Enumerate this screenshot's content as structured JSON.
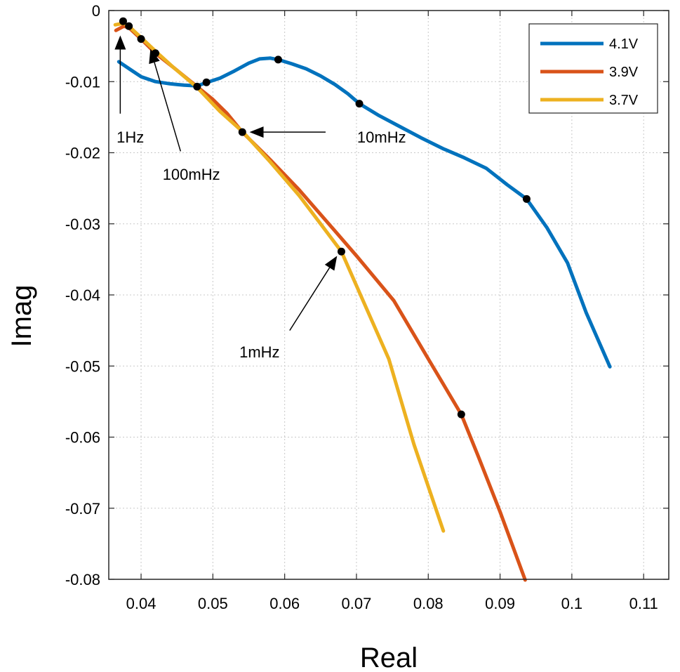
{
  "chart_data": {
    "type": "line",
    "xlabel": "Real",
    "ylabel": "Imag",
    "xlim": [
      0.0355,
      0.1135
    ],
    "ylim": [
      -0.08,
      0
    ],
    "xticks": [
      0.04,
      0.05,
      0.06,
      0.07,
      0.08,
      0.09,
      0.1,
      0.11
    ],
    "xtick_labels": [
      "0.04",
      "0.05",
      "0.06",
      "0.07",
      "0.08",
      "0.09",
      "0.1",
      "0.11"
    ],
    "yticks": [
      0,
      -0.01,
      -0.02,
      -0.03,
      -0.04,
      -0.05,
      -0.06,
      -0.07,
      -0.08
    ],
    "ytick_labels": [
      "0",
      "-0.01",
      "-0.02",
      "-0.03",
      "-0.04",
      "-0.05",
      "-0.06",
      "-0.07",
      "-0.08"
    ],
    "grid": true,
    "legend_position": "top-right",
    "series": [
      {
        "name": "4.1V",
        "color": "#0072BD",
        "x": [
          0.0369,
          0.0385,
          0.04,
          0.042,
          0.044,
          0.046,
          0.0478,
          0.0492,
          0.051,
          0.053,
          0.055,
          0.0565,
          0.058,
          0.0591,
          0.061,
          0.063,
          0.065,
          0.067,
          0.0688,
          0.0704,
          0.073,
          0.076,
          0.079,
          0.082,
          0.085,
          0.0881,
          0.091,
          0.0937,
          0.0965,
          0.0994,
          0.102,
          0.1053
        ],
        "y": [
          -0.0072,
          -0.0083,
          -0.0093,
          -0.01,
          -0.0103,
          -0.0105,
          -0.0106,
          -0.0101,
          -0.0095,
          -0.0085,
          -0.0074,
          -0.0068,
          -0.0067,
          -0.0069,
          -0.0075,
          -0.0082,
          -0.0092,
          -0.0104,
          -0.0117,
          -0.0131,
          -0.0147,
          -0.0163,
          -0.0179,
          -0.0194,
          -0.0207,
          -0.0222,
          -0.0245,
          -0.0265,
          -0.0305,
          -0.0355,
          -0.0425,
          -0.0501
        ]
      },
      {
        "name": "3.9V",
        "color": "#D95319",
        "x": [
          0.0365,
          0.0376,
          0.0383,
          0.04,
          0.042,
          0.0445,
          0.0478,
          0.05,
          0.052,
          0.0541,
          0.058,
          0.062,
          0.067,
          0.07,
          0.0752,
          0.08,
          0.0846,
          0.087,
          0.09,
          0.0935
        ],
        "y": [
          -0.0028,
          -0.0022,
          -0.0024,
          -0.004,
          -0.006,
          -0.008,
          -0.0107,
          -0.0125,
          -0.0145,
          -0.0171,
          -0.021,
          -0.0252,
          -0.031,
          -0.0345,
          -0.0408,
          -0.049,
          -0.0568,
          -0.0628,
          -0.0705,
          -0.0801
        ]
      },
      {
        "name": "3.7V",
        "color": "#EDB120",
        "x": [
          0.0364,
          0.0375,
          0.0383,
          0.04,
          0.0421,
          0.0445,
          0.0478,
          0.051,
          0.0541,
          0.058,
          0.062,
          0.065,
          0.0679,
          0.071,
          0.0745,
          0.078,
          0.0821
        ],
        "y": [
          -0.002,
          -0.0018,
          -0.0022,
          -0.0038,
          -0.0058,
          -0.008,
          -0.0108,
          -0.0142,
          -0.017,
          -0.0213,
          -0.026,
          -0.03,
          -0.0339,
          -0.041,
          -0.049,
          -0.061,
          -0.0732
        ]
      }
    ],
    "markers": {
      "color": "#000000",
      "points": [
        [
          0.0375,
          -0.0015
        ],
        [
          0.0383,
          -0.0022
        ],
        [
          0.04,
          -0.004
        ],
        [
          0.042,
          -0.006
        ],
        [
          0.0478,
          -0.0107
        ],
        [
          0.0491,
          -0.0101
        ],
        [
          0.0541,
          -0.0171
        ],
        [
          0.0591,
          -0.0069
        ],
        [
          0.0679,
          -0.0339
        ],
        [
          0.0704,
          -0.0131
        ],
        [
          0.0846,
          -0.0568
        ],
        [
          0.0937,
          -0.0265
        ]
      ]
    },
    "annotations": [
      {
        "text": "1Hz",
        "text_at": [
          0.0385,
          -0.0178
        ],
        "arrow_from": [
          0.0371,
          -0.0145
        ],
        "arrow_to": [
          0.0371,
          -0.0035
        ]
      },
      {
        "text": "100mHz",
        "text_at": [
          0.047,
          -0.023
        ],
        "arrow_from": [
          0.0455,
          -0.0198
        ],
        "arrow_to": [
          0.0413,
          -0.0054
        ]
      },
      {
        "text": "10mHz",
        "text_at": [
          0.0735,
          -0.0178
        ],
        "arrow_from": [
          0.0657,
          -0.0171
        ],
        "arrow_to": [
          0.0551,
          -0.0171
        ]
      },
      {
        "text": "1mHz",
        "text_at": [
          0.0565,
          -0.048
        ],
        "arrow_from": [
          0.0607,
          -0.045
        ],
        "arrow_to": [
          0.0673,
          -0.0345
        ]
      }
    ]
  }
}
